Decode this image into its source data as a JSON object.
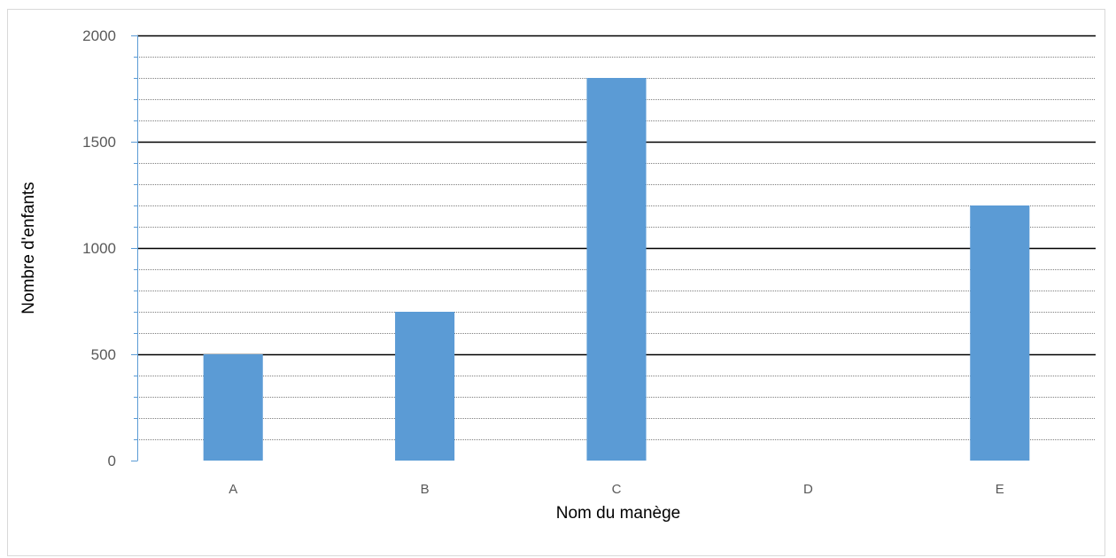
{
  "chart_data": {
    "type": "bar",
    "title": "",
    "xlabel": "Nom du manège",
    "ylabel": "Nombre d'enfants",
    "categories": [
      "A",
      "B",
      "C",
      "D",
      "E"
    ],
    "values": [
      500,
      700,
      1800,
      0,
      1200
    ],
    "ylim": [
      0,
      2000
    ],
    "yticks": [
      0,
      500,
      1000,
      1500,
      2000
    ],
    "ytick_labels": [
      "0",
      "500",
      "1000",
      "1500",
      "2000"
    ],
    "minor_step": 100,
    "grid": true,
    "legend": "none",
    "colors": {
      "bar": "#5b9bd5",
      "major_grid": "#000000",
      "minor_grid": "#000000",
      "axis": "#5b9bd5"
    }
  }
}
